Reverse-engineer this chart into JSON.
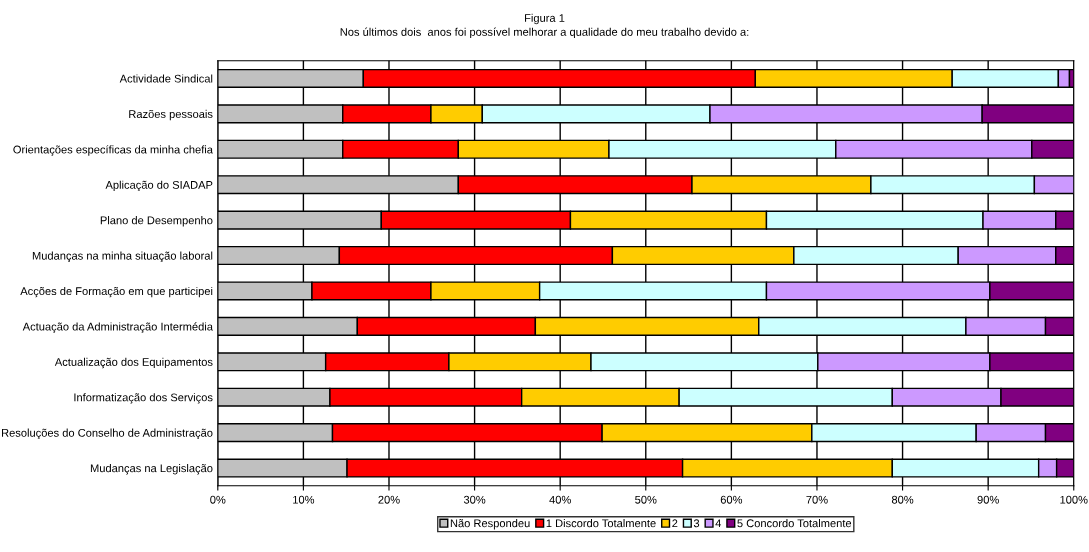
{
  "chart_data": {
    "type": "bar",
    "orientation": "horizontal",
    "stacked": true,
    "title": "Figura 1",
    "subtitle": "Nos últimos dois  anos foi possível melhorar a qualidade do meu trabalho devido a:",
    "categories": [
      "Actividade Sindical",
      "Razões pessoais",
      "Orientações específicas da minha chefia",
      "Aplicação do SIADAP",
      "Plano de Desempenho",
      "Mudanças na minha situação laboral",
      "Acções de Formação em que participei",
      "Actuação da Administração Intermédia",
      "Actualização dos Equipamentos",
      "Informatização dos Serviços",
      "Resoluções do Conselho de Administração",
      "Mudanças na Legislação"
    ],
    "series": [
      {
        "name": "Não Respondeu",
        "color": "#c0c0c0",
        "values": [
          17.0,
          14.6,
          14.6,
          28.1,
          19.1,
          14.2,
          11.0,
          16.3,
          12.6,
          13.1,
          13.4,
          15.1
        ]
      },
      {
        "name": "1 Discordo Totalmente",
        "color": "#ff0000",
        "values": [
          45.8,
          10.3,
          13.5,
          27.3,
          22.1,
          31.9,
          13.9,
          20.8,
          14.4,
          22.4,
          31.5,
          39.2
        ]
      },
      {
        "name": "2",
        "color": "#ffcc00",
        "values": [
          23.0,
          6.0,
          17.6,
          20.9,
          22.9,
          21.2,
          12.7,
          26.1,
          16.6,
          18.4,
          24.5,
          24.5
        ]
      },
      {
        "name": "3",
        "color": "#ccffff",
        "values": [
          12.4,
          26.6,
          26.5,
          19.1,
          25.3,
          19.2,
          26.5,
          24.2,
          26.5,
          24.9,
          19.2,
          17.1
        ]
      },
      {
        "name": "4",
        "color": "#cc99ff",
        "values": [
          1.3,
          31.8,
          22.9,
          4.6,
          8.5,
          11.4,
          26.1,
          9.3,
          20.1,
          12.7,
          8.1,
          2.1
        ]
      },
      {
        "name": "5 Concordo Totalmente",
        "color": "#800080",
        "values": [
          0.5,
          10.7,
          4.9,
          null,
          2.1,
          2.1,
          9.8,
          3.3,
          9.8,
          8.5,
          3.3,
          2.0
        ]
      }
    ],
    "xlim": [
      0,
      100
    ],
    "xticks": [
      {
        "value": 0,
        "label": "0%"
      },
      {
        "value": 10,
        "label": "10%"
      },
      {
        "value": 20,
        "label": "20%"
      },
      {
        "value": 30,
        "label": "30%"
      },
      {
        "value": 40,
        "label": "40%"
      },
      {
        "value": 50,
        "label": "50%"
      },
      {
        "value": 60,
        "label": "60%"
      },
      {
        "value": 70,
        "label": "70%"
      },
      {
        "value": 80,
        "label": "80%"
      },
      {
        "value": 90,
        "label": "90%"
      },
      {
        "value": 100,
        "label": "100%"
      }
    ],
    "grid": "x",
    "legend": "bottom"
  }
}
